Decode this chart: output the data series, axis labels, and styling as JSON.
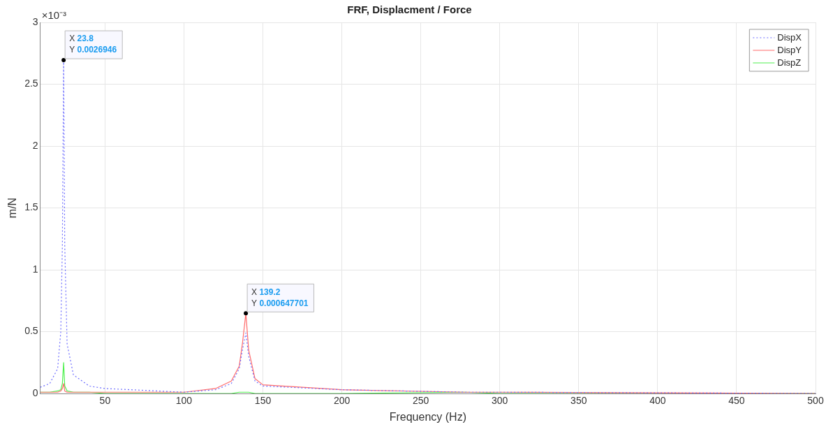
{
  "chart_data": {
    "type": "line",
    "title": "FRF, Displacment / Force",
    "xlabel": "Frequency (Hz)",
    "ylabel": "m/N",
    "xlim": [
      9,
      500
    ],
    "xticks": [
      50,
      100,
      150,
      200,
      250,
      300,
      350,
      400,
      450,
      500
    ],
    "ylim": [
      0,
      3
    ],
    "yticks": [
      0,
      0.5,
      1,
      1.5,
      2,
      2.5,
      3
    ],
    "grid": true,
    "legend": "top right",
    "marker": "none",
    "annotations": [
      "×10⁻³",
      {
        "text": "X 23.8\nY 0.0026946",
        "x": 23.8,
        "y": 2.6946
      },
      {
        "text": "X 139.2\nY 0.000647701",
        "x": 139.2,
        "y": 0.647701
      }
    ],
    "x": [
      9,
      15,
      20,
      22,
      23,
      23.8,
      24.5,
      26,
      30,
      40,
      50,
      100,
      120,
      130,
      135,
      137,
      139.2,
      141,
      145,
      150,
      200,
      278,
      300,
      500
    ],
    "series": [
      {
        "name": "DispX",
        "color": "#6b6bff",
        "line_style": "dotted",
        "values": [
          0.05,
          0.08,
          0.2,
          0.5,
          1.2,
          2.6946,
          1.2,
          0.4,
          0.15,
          0.06,
          0.04,
          0.01,
          0.03,
          0.08,
          0.2,
          0.35,
          0.49,
          0.3,
          0.1,
          0.06,
          0.03,
          0.01,
          0.01,
          0
        ]
      },
      {
        "name": "DispY",
        "color": "#ff6b6b",
        "line_style": "solid",
        "values": [
          0.01,
          0.01,
          0.01,
          0.02,
          0.04,
          0.08,
          0.02,
          0.01,
          0.01,
          0.01,
          0.01,
          0.01,
          0.04,
          0.1,
          0.22,
          0.4,
          0.647701,
          0.35,
          0.12,
          0.07,
          0.03,
          0.01,
          0.01,
          0
        ]
      },
      {
        "name": "DispZ",
        "color": "#4ef04e",
        "line_style": "solid",
        "values": [
          0.01,
          0.01,
          0.02,
          0.03,
          0.08,
          0.25,
          0.06,
          0.02,
          0.01,
          0.01,
          0,
          0,
          0,
          0,
          0.01,
          0.01,
          0.01,
          0.01,
          0,
          0,
          0,
          0.01,
          0,
          0
        ]
      }
    ]
  }
}
